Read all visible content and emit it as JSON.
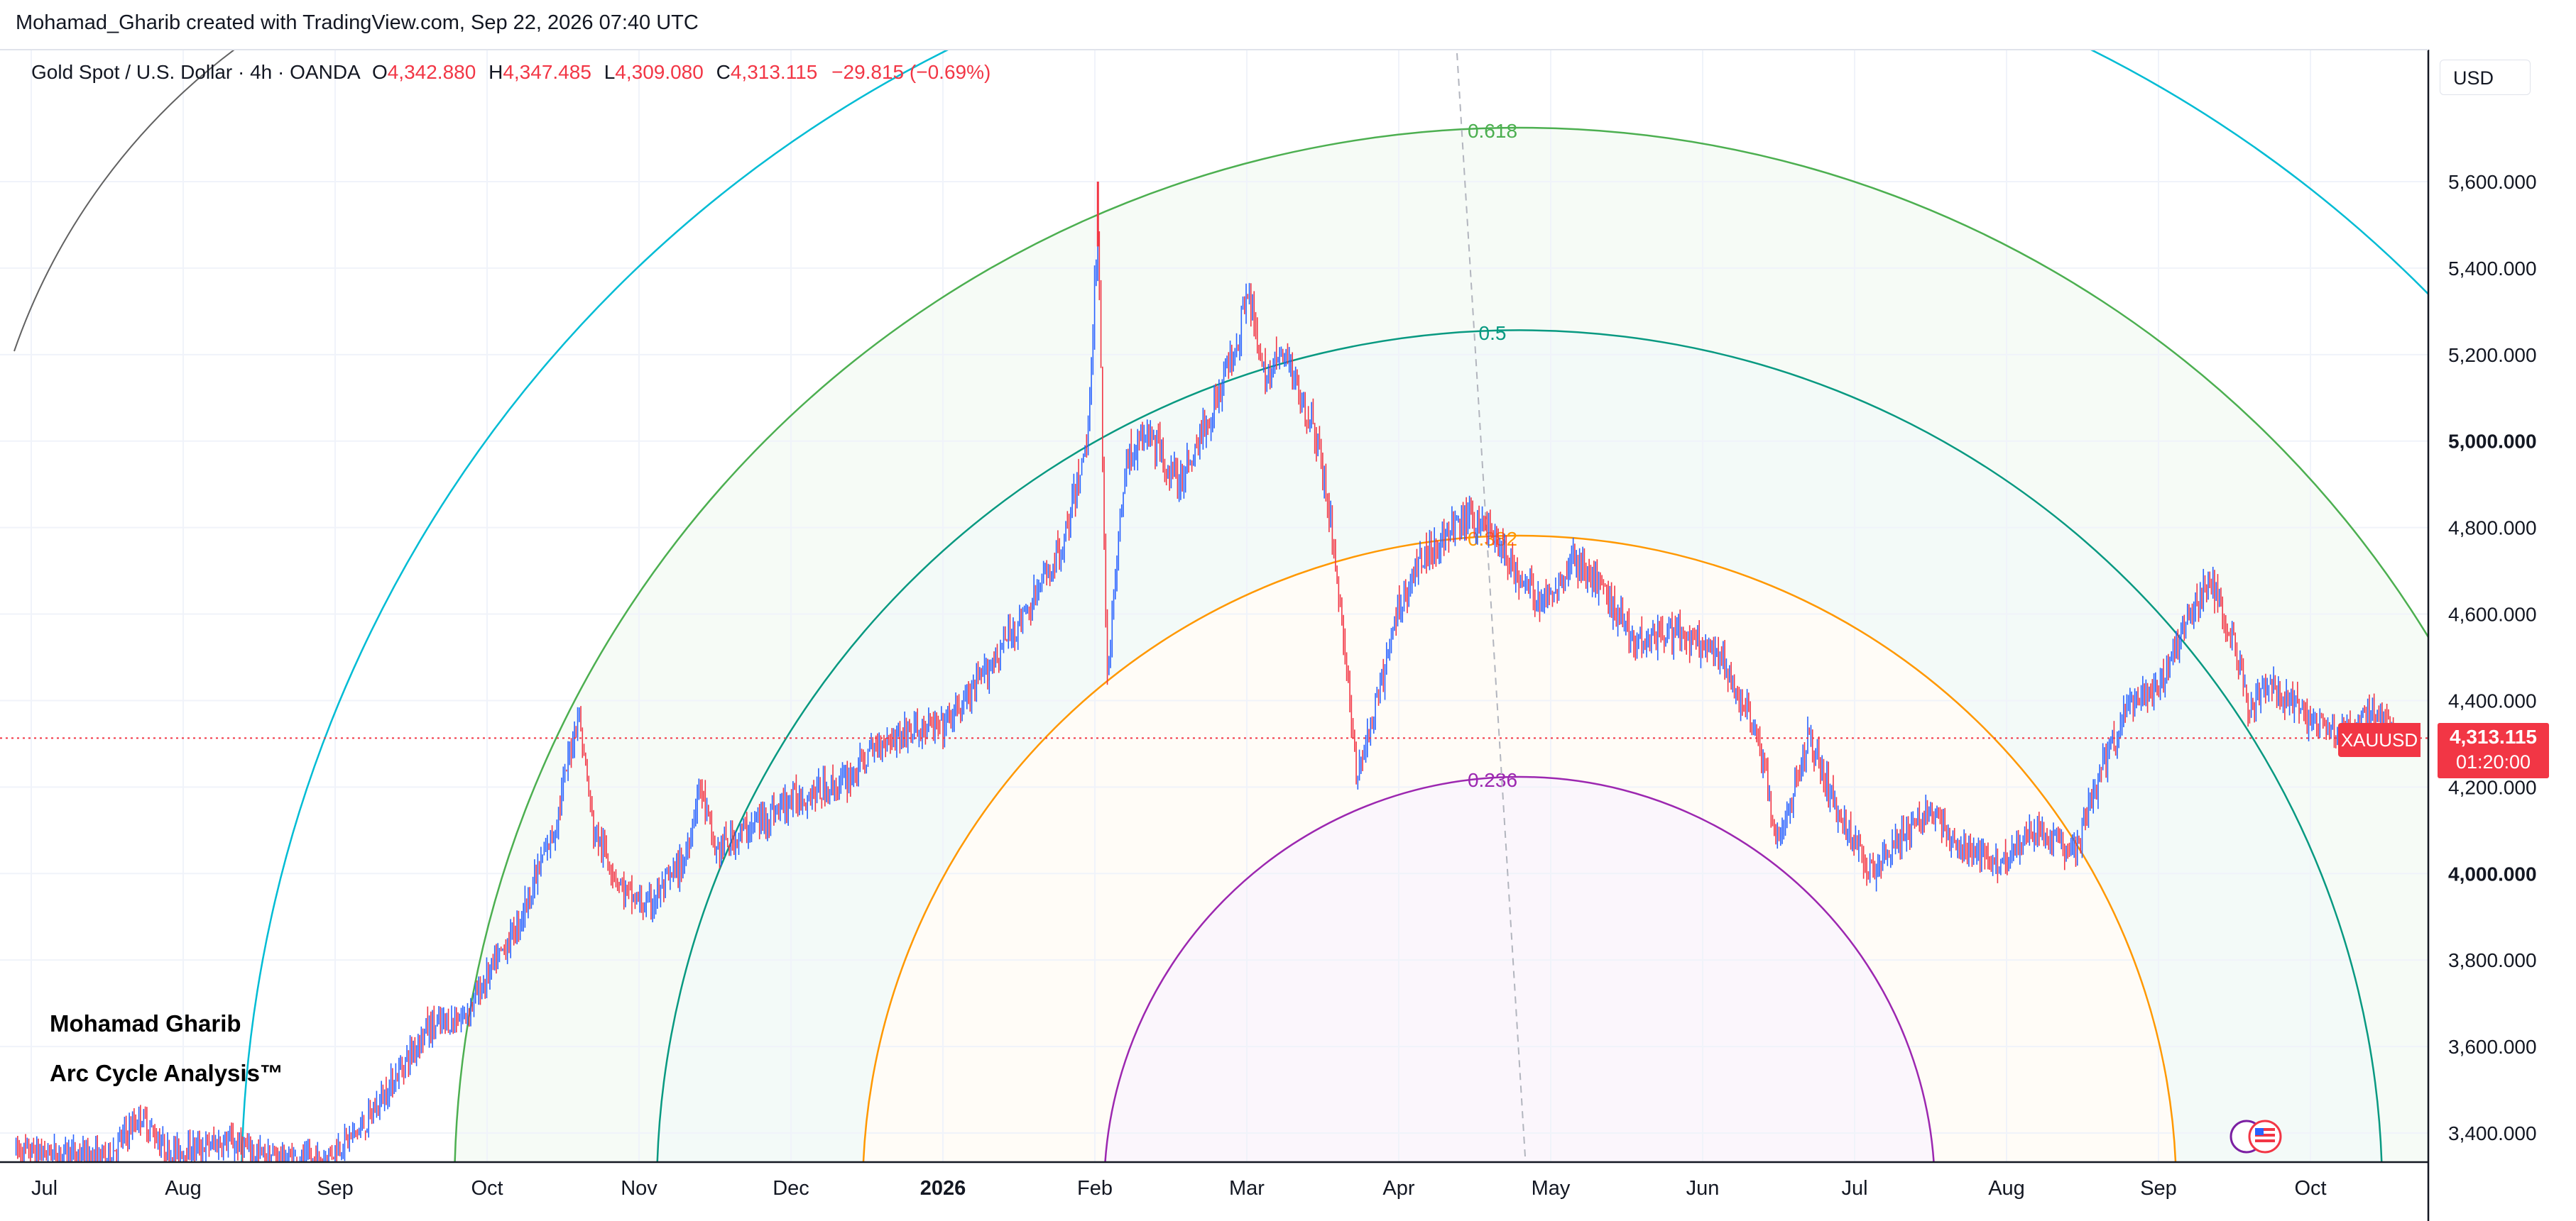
{
  "attribution": "Mohamad_Gharib created with TradingView.com, Sep 22, 2026 07:40 UTC",
  "legend": {
    "symbol": "Gold Spot / U.S. Dollar · 4h · OANDA",
    "o_label": "O",
    "o_value": "4,342.880",
    "h_label": "H",
    "h_value": "4,347.485",
    "l_label": "L",
    "l_value": "4,309.080",
    "c_label": "C",
    "c_value": "4,313.115",
    "change": "−29.815 (−0.69%)"
  },
  "currency_button": "USD",
  "watermark": {
    "line1": "Mohamad Gharib",
    "line2": "Arc Cycle Analysis™"
  },
  "price_tag": {
    "symbol": "XAUUSD",
    "price": "4,313.115",
    "countdown": "01:20:00"
  },
  "colors": {
    "up": "#2962ff",
    "down": "#f23645",
    "fib_0236": "#9c27b0",
    "fib_0382": "#ff9800",
    "fib_05": "#089981",
    "fib_0618": "#4caf50",
    "fib_outer": "#00bcd4",
    "fib_far": "#616161",
    "grid": "#f0f3fa",
    "axis_text": "#131722"
  },
  "chart_data": {
    "type": "candlestick",
    "title": "Gold Spot / U.S. Dollar · 4h · OANDA",
    "ylim": [
      3350,
      5850
    ],
    "y_ticks": [
      3400,
      3600,
      3800,
      4000,
      4200,
      4400,
      4600,
      4800,
      5000,
      5200,
      5400,
      5600
    ],
    "y_tick_labels": [
      "3,400.000",
      "3,600.000",
      "3,800.000",
      "4,000.000",
      "4,200.000",
      "4,400.000",
      "4,600.000",
      "4,800.000",
      "5,000.000",
      "5,200.000",
      "5,400.000",
      "5,600.000"
    ],
    "x_ticks": [
      "Jul",
      "Aug",
      "Sep",
      "Oct",
      "Nov",
      "Dec",
      "2026",
      "Feb",
      "Mar",
      "Apr",
      "May",
      "Jun",
      "Jul",
      "Aug",
      "Sep",
      "Oct"
    ],
    "x_tick_months": [
      0,
      1,
      2,
      3,
      4,
      5,
      6,
      7,
      8,
      9,
      10,
      11,
      12,
      13,
      14,
      15
    ],
    "xlim_months": [
      -0.1,
      16.7
    ],
    "last_price": 4313.115,
    "price_path": [
      [
        -0.1,
        3360
      ],
      [
        0.5,
        3345
      ],
      [
        0.72,
        3440
      ],
      [
        0.9,
        3355
      ],
      [
        1.3,
        3380
      ],
      [
        1.55,
        3345
      ],
      [
        1.9,
        3335
      ],
      [
        2.2,
        3420
      ],
      [
        2.45,
        3560
      ],
      [
        2.6,
        3640
      ],
      [
        2.85,
        3670
      ],
      [
        3.0,
        3760
      ],
      [
        3.2,
        3880
      ],
      [
        3.45,
        4110
      ],
      [
        3.6,
        4380
      ],
      [
        3.7,
        4100
      ],
      [
        3.9,
        3960
      ],
      [
        4.05,
        3920
      ],
      [
        4.3,
        4030
      ],
      [
        4.4,
        4210
      ],
      [
        4.5,
        4050
      ],
      [
        4.7,
        4100
      ],
      [
        5.0,
        4170
      ],
      [
        5.35,
        4210
      ],
      [
        5.6,
        4310
      ],
      [
        5.8,
        4330
      ],
      [
        6.0,
        4340
      ],
      [
        6.2,
        4420
      ],
      [
        6.45,
        4560
      ],
      [
        6.55,
        4600
      ],
      [
        6.8,
        4770
      ],
      [
        6.95,
        5000
      ],
      [
        7.02,
        5500
      ],
      [
        7.08,
        4450
      ],
      [
        7.2,
        4950
      ],
      [
        7.35,
        5020
      ],
      [
        7.55,
        4900
      ],
      [
        7.75,
        5050
      ],
      [
        7.95,
        5250
      ],
      [
        8.0,
        5370
      ],
      [
        8.1,
        5150
      ],
      [
        8.25,
        5200
      ],
      [
        8.45,
        5020
      ],
      [
        8.55,
        4820
      ],
      [
        8.65,
        4500
      ],
      [
        8.72,
        4220
      ],
      [
        8.85,
        4380
      ],
      [
        9.0,
        4620
      ],
      [
        9.15,
        4730
      ],
      [
        9.3,
        4780
      ],
      [
        9.45,
        4820
      ],
      [
        9.6,
        4800
      ],
      [
        9.75,
        4700
      ],
      [
        9.95,
        4620
      ],
      [
        10.15,
        4730
      ],
      [
        10.35,
        4650
      ],
      [
        10.55,
        4540
      ],
      [
        10.8,
        4560
      ],
      [
        11.1,
        4500
      ],
      [
        11.35,
        4340
      ],
      [
        11.5,
        4060
      ],
      [
        11.7,
        4320
      ],
      [
        11.9,
        4130
      ],
      [
        12.1,
        4010
      ],
      [
        12.3,
        4080
      ],
      [
        12.5,
        4150
      ],
      [
        12.7,
        4050
      ],
      [
        12.95,
        4030
      ],
      [
        13.2,
        4100
      ],
      [
        13.45,
        4040
      ],
      [
        13.6,
        4220
      ],
      [
        13.8,
        4380
      ],
      [
        14.0,
        4430
      ],
      [
        14.2,
        4600
      ],
      [
        14.35,
        4680
      ],
      [
        14.5,
        4520
      ],
      [
        14.6,
        4380
      ],
      [
        14.75,
        4440
      ],
      [
        14.95,
        4370
      ],
      [
        15.1,
        4330
      ],
      [
        15.25,
        4330
      ],
      [
        15.45,
        4380
      ],
      [
        15.55,
        4313
      ]
    ],
    "peak_wick": [
      7.02,
      5600
    ],
    "annotations": [
      {
        "label": "0.618",
        "value": 0.618
      },
      {
        "label": "0.5",
        "value": 0.5
      },
      {
        "label": "0.382",
        "value": 0.382
      },
      {
        "label": "0.236",
        "value": 0.236
      }
    ]
  }
}
